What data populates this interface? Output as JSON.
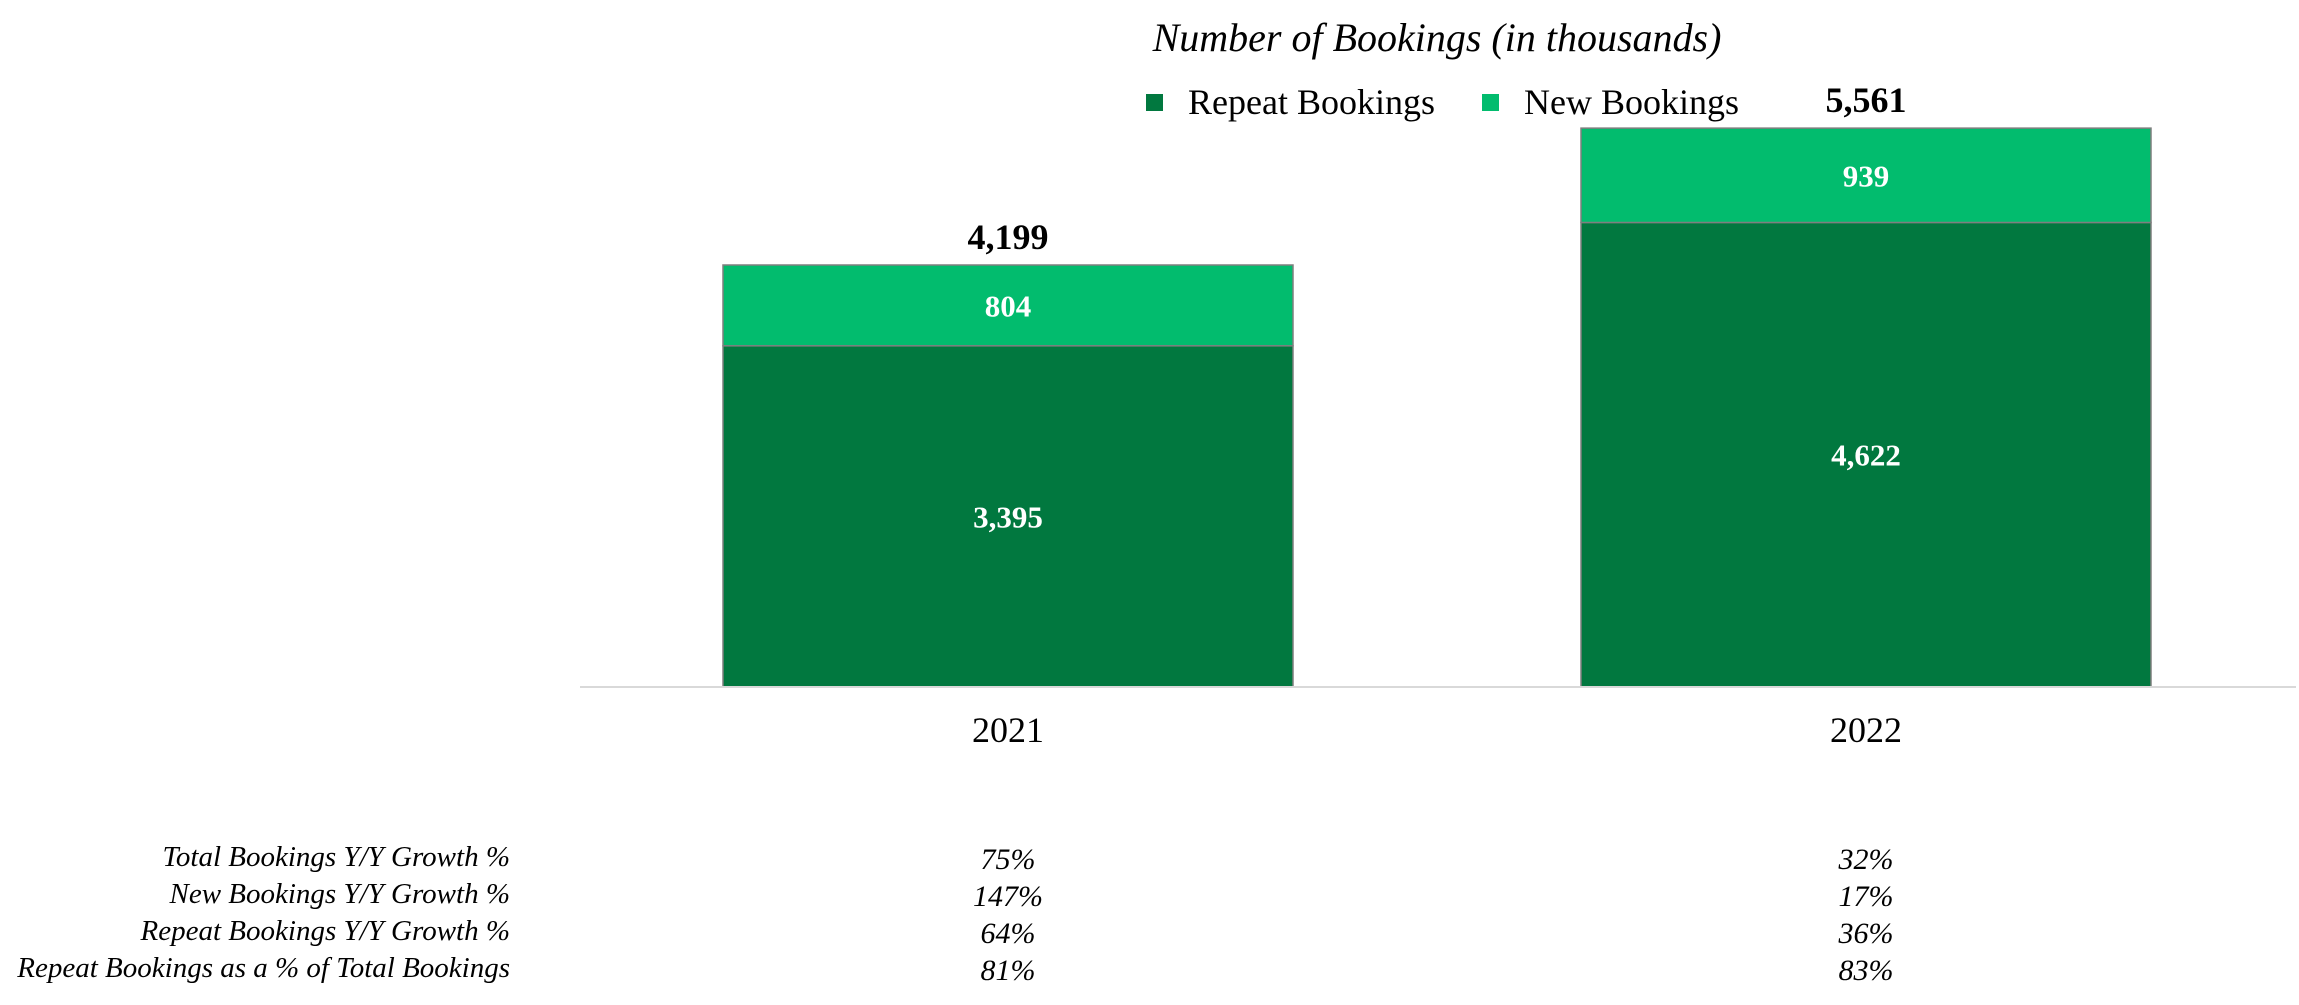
{
  "chart_data": {
    "type": "bar",
    "stacked": true,
    "title": "Number of Bookings (in thousands)",
    "categories": [
      "2021",
      "2022"
    ],
    "series": [
      {
        "name": "Repeat Bookings",
        "color": "#01783f",
        "values": [
          3395,
          4622
        ],
        "labels": [
          "3,395",
          "4,622"
        ]
      },
      {
        "name": "New Bookings",
        "color": "#02bc6e",
        "values": [
          804,
          939
        ],
        "labels": [
          "804",
          "939"
        ]
      }
    ],
    "totals": [
      4199,
      5561
    ],
    "total_labels": [
      "4,199",
      "5,561"
    ],
    "ylim": [
      0,
      6000
    ],
    "grid": false,
    "legend": "top-center",
    "axis_color": "#d9d9d9",
    "bar_border_color": "#7f7f7f"
  },
  "metrics_table": {
    "rows": [
      {
        "label": "Total Bookings Y/Y Growth %",
        "values": [
          "75%",
          "32%"
        ]
      },
      {
        "label": "New Bookings Y/Y Growth %",
        "values": [
          "147%",
          "17%"
        ]
      },
      {
        "label": "Repeat Bookings Y/Y Growth %",
        "values": [
          "64%",
          "36%"
        ]
      },
      {
        "label": "Repeat Bookings as a % of Total Bookings",
        "values": [
          "81%",
          "83%"
        ]
      }
    ]
  }
}
